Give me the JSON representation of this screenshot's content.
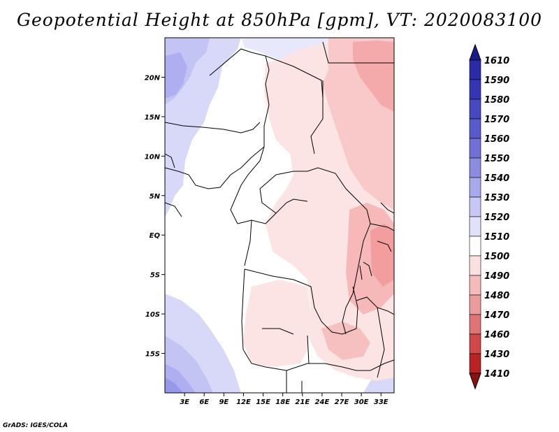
{
  "title": "Geopotential Height at 850hPa [gpm], VT: 2020083100",
  "footer": "GrADS: IGES/COLA",
  "chart_data": {
    "type": "heatmap",
    "variable": "Geopotential Height at 850hPa",
    "units": "gpm",
    "valid_time": "2020083100",
    "lon_range": [
      0,
      35
    ],
    "lat_range": [
      -20,
      25
    ],
    "x_ticks": [
      "3E",
      "6E",
      "9E",
      "12E",
      "15E",
      "18E",
      "21E",
      "24E",
      "27E",
      "30E",
      "33E"
    ],
    "y_ticks": [
      "20N",
      "15N",
      "10N",
      "5N",
      "EQ",
      "5S",
      "10S",
      "15S"
    ],
    "colorbar": {
      "levels": [
        "1610",
        "1590",
        "1580",
        "1570",
        "1560",
        "1550",
        "1540",
        "1530",
        "1520",
        "1510",
        "1500",
        "1490",
        "1480",
        "1470",
        "1460",
        "1430",
        "1410"
      ],
      "colors": [
        "#1a1a8c",
        "#2a2aa6",
        "#3636b4",
        "#4848c0",
        "#5a5acc",
        "#7070d6",
        "#8c8ce0",
        "#a8a8ec",
        "#c8c8f4",
        "#e0e0fa",
        "#ffffff",
        "#fbe0e0",
        "#f4bcbc",
        "#ec9c9c",
        "#e07474",
        "#d04848",
        "#b82222",
        "#8c1010"
      ],
      "arrow_top_color": "#1a1a8c",
      "arrow_bottom_color": "#8c1010"
    },
    "regions_summary": {
      "west_and_southwest_coast": "1520-1540",
      "central_africa": "1500-1510",
      "east_africa_sudan_ethiopia": "1490-1500",
      "lake_victoria_region": "1480-1490"
    }
  }
}
